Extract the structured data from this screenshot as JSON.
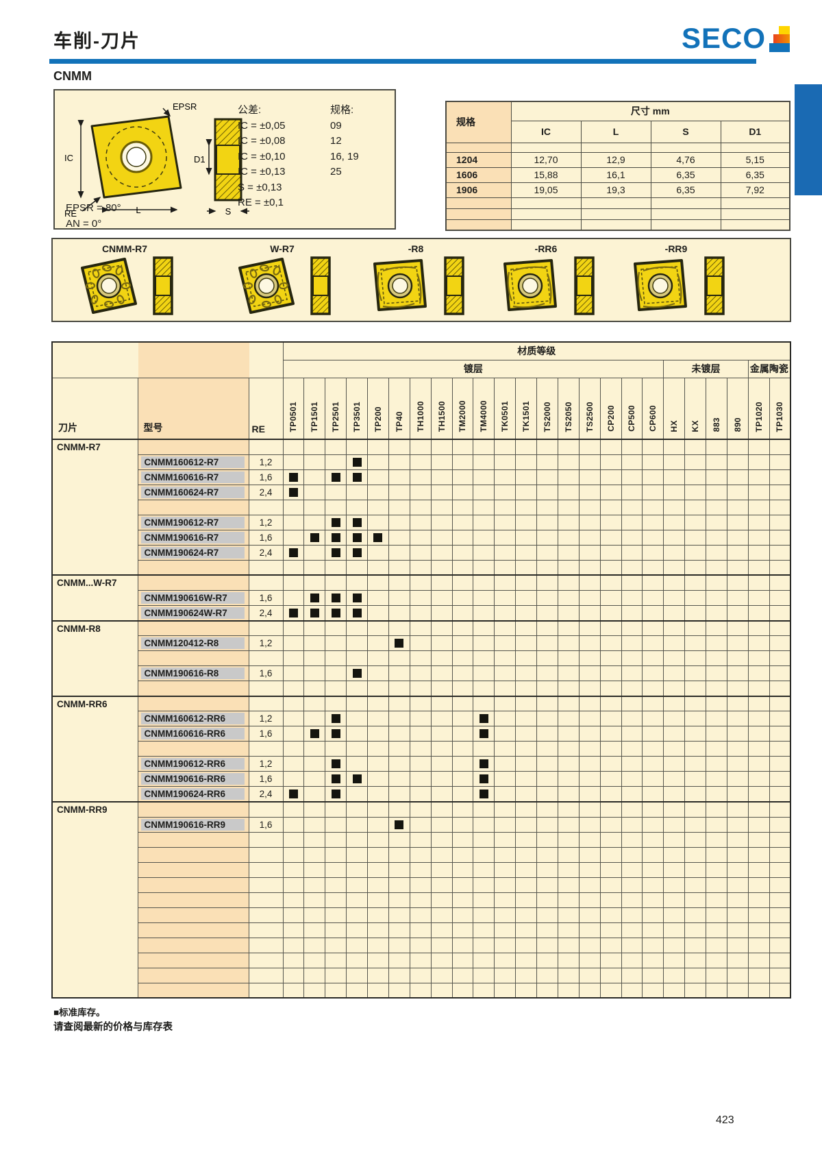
{
  "page": {
    "title": "车削-刀片",
    "brand": "SECO",
    "section": "CNMM",
    "page_number": "423"
  },
  "diagram": {
    "tolerance_title": "公差:",
    "tolerances": [
      "IC = ±0,05",
      "IC = ±0,08",
      "IC = ±0,10",
      "IC = ±0,13",
      "S = ±0,13",
      "RE = ±0,1"
    ],
    "size_title": "规格:",
    "sizes": [
      "09",
      "12",
      "16, 19",
      "25"
    ],
    "notes": [
      "EPSR = 80°",
      "AN = 0°"
    ],
    "labels": {
      "ic": "IC",
      "l": "L",
      "s": "S",
      "d1": "D1",
      "re": "RE",
      "epsr": "EPSR"
    }
  },
  "dim_table": {
    "header_span": "尺寸 mm",
    "col_spec": "规格",
    "columns": [
      "IC",
      "L",
      "S",
      "D1"
    ],
    "rows": [
      {
        "spec": "1204",
        "values": [
          "12,70",
          "12,9",
          "4,76",
          "5,15"
        ]
      },
      {
        "spec": "1606",
        "values": [
          "15,88",
          "16,1",
          "6,35",
          "6,35"
        ]
      },
      {
        "spec": "1906",
        "values": [
          "19,05",
          "19,3",
          "6,35",
          "7,92"
        ]
      }
    ],
    "empty_rows_bottom": 3
  },
  "insert_gallery": {
    "items": [
      {
        "label": "CNMM-R7"
      },
      {
        "label": "W-R7"
      },
      {
        "label": "-R8"
      },
      {
        "label": "-RR6"
      },
      {
        "label": "-RR9"
      }
    ]
  },
  "matrix": {
    "corner_labels": {
      "insert": "刀片",
      "model": "型号",
      "re": "RE"
    },
    "group_title": "材质等级",
    "groups": [
      {
        "label": "镀层",
        "cols": 18
      },
      {
        "label": "未镀层",
        "cols": 4
      },
      {
        "label": "金属陶瓷",
        "cols": 2
      }
    ],
    "grades": [
      "TP0501",
      "TP1501",
      "TP2501",
      "TP3501",
      "TP200",
      "TP40",
      "TH1000",
      "TH1500",
      "TM2000",
      "TM4000",
      "TK0501",
      "TK1501",
      "TS2000",
      "TS2050",
      "TS2500",
      "CP200",
      "CP500",
      "CP600",
      "HX",
      "KX",
      "883",
      "890",
      "TP1020",
      "TP1030"
    ],
    "sections": [
      {
        "name": "CNMM-R7",
        "rows": [
          {
            "model": "",
            "re": "",
            "marks": []
          },
          {
            "model": "CNMM160612-R7",
            "re": "1,2",
            "marks": [
              "TP3501"
            ]
          },
          {
            "model": "CNMM160616-R7",
            "re": "1,6",
            "marks": [
              "TP0501",
              "TP2501",
              "TP3501"
            ]
          },
          {
            "model": "CNMM160624-R7",
            "re": "2,4",
            "marks": [
              "TP0501"
            ]
          },
          {
            "model": "",
            "re": "",
            "marks": []
          },
          {
            "model": "CNMM190612-R7",
            "re": "1,2",
            "marks": [
              "TP2501",
              "TP3501"
            ]
          },
          {
            "model": "CNMM190616-R7",
            "re": "1,6",
            "marks": [
              "TP1501",
              "TP2501",
              "TP3501",
              "TP200"
            ]
          },
          {
            "model": "CNMM190624-R7",
            "re": "2,4",
            "marks": [
              "TP0501",
              "TP2501",
              "TP3501"
            ]
          },
          {
            "model": "",
            "re": "",
            "marks": []
          }
        ]
      },
      {
        "name": "CNMM...W-R7",
        "rows": [
          {
            "model": "",
            "re": "",
            "marks": []
          },
          {
            "model": "CNMM190616W-R7",
            "re": "1,6",
            "marks": [
              "TP1501",
              "TP2501",
              "TP3501"
            ]
          },
          {
            "model": "CNMM190624W-R7",
            "re": "2,4",
            "marks": [
              "TP0501",
              "TP1501",
              "TP2501",
              "TP3501"
            ]
          }
        ]
      },
      {
        "name": "CNMM-R8",
        "rows": [
          {
            "model": "",
            "re": "",
            "marks": []
          },
          {
            "model": "CNMM120412-R8",
            "re": "1,2",
            "marks": [
              "TP40"
            ]
          },
          {
            "model": "",
            "re": "",
            "marks": []
          },
          {
            "model": "CNMM190616-R8",
            "re": "1,6",
            "marks": [
              "TP3501"
            ]
          },
          {
            "model": "",
            "re": "",
            "marks": []
          }
        ]
      },
      {
        "name": "CNMM-RR6",
        "rows": [
          {
            "model": "",
            "re": "",
            "marks": []
          },
          {
            "model": "CNMM160612-RR6",
            "re": "1,2",
            "marks": [
              "TP2501",
              "TM4000"
            ]
          },
          {
            "model": "CNMM160616-RR6",
            "re": "1,6",
            "marks": [
              "TP1501",
              "TP2501",
              "TM4000"
            ]
          },
          {
            "model": "",
            "re": "",
            "marks": []
          },
          {
            "model": "CNMM190612-RR6",
            "re": "1,2",
            "marks": [
              "TP2501",
              "TM4000"
            ]
          },
          {
            "model": "CNMM190616-RR6",
            "re": "1,6",
            "marks": [
              "TP2501",
              "TP3501",
              "TM4000"
            ]
          },
          {
            "model": "CNMM190624-RR6",
            "re": "2,4",
            "marks": [
              "TP0501",
              "TP2501",
              "TM4000"
            ]
          }
        ]
      },
      {
        "name": "CNMM-RR9",
        "rows": [
          {
            "model": "",
            "re": "",
            "marks": []
          },
          {
            "model": "CNMM190616-RR9",
            "re": "1,6",
            "marks": [
              "TP40"
            ]
          }
        ]
      }
    ],
    "trailing_empty_rows": 11,
    "mark_meaning": "标准库存"
  },
  "footer": {
    "note1": "■标准库存。",
    "note2": "请查阅最新的价格与库存表"
  },
  "colors": {
    "accent_blue": "#1272b9",
    "cream": "#fcf3d4",
    "peach": "#fae0b6",
    "insert_yellow": "#f2d413",
    "model_gray": "#c9c9c9",
    "stock_mark": "#15150f"
  }
}
